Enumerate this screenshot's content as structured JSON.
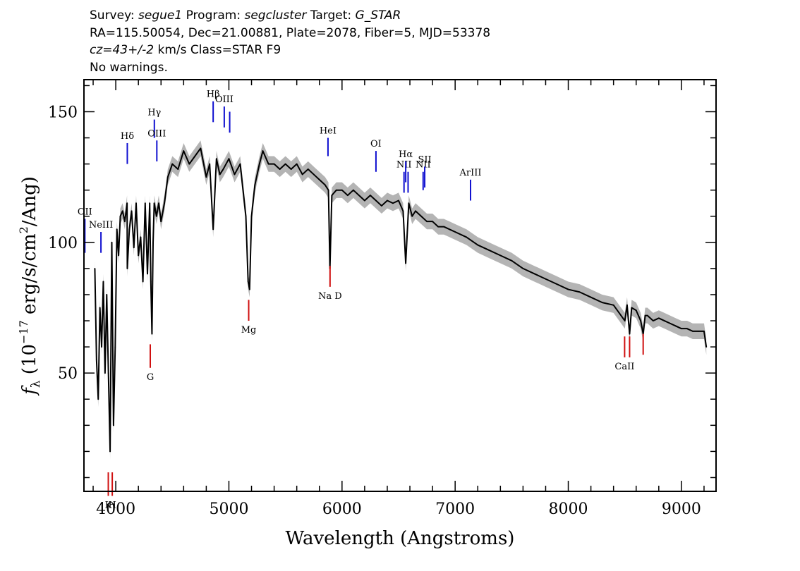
{
  "header": {
    "survey_label": "Survey:",
    "survey": "segue1",
    "program_label": "Program:",
    "program": "segcluster",
    "target_label": "Target:",
    "target": "G_STAR",
    "line2": "RA=115.50054, Dec=21.00881, Plate=2078, Fiber=5, MJD=53378",
    "cz": "cz=43+/-2",
    "cz_rest": " km/s Class=STAR F9",
    "warnings": "No warnings."
  },
  "chart_data": {
    "type": "line",
    "xlabel": "Wavelength (Angstroms)",
    "ylabel": "fλ (10^-17 erg/s/cm^2/Ang)",
    "xlim": [
      3725,
      9300
    ],
    "ylim": [
      5,
      162
    ],
    "x_ticks": [
      4000,
      5000,
      6000,
      7000,
      8000,
      9000
    ],
    "x_tick_labels": [
      "4000",
      "5000",
      "6000",
      "7000",
      "8000",
      "9000"
    ],
    "y_ticks": [
      50,
      100,
      150
    ],
    "y_tick_labels": [
      "50",
      "100",
      "150"
    ],
    "colors": {
      "spectrum": "#000000",
      "error": "#b4b4b4",
      "emission": "#1010d0",
      "absorption": "#d01010"
    },
    "series": [
      {
        "x": [
          3815,
          3830,
          3845,
          3860,
          3875,
          3890,
          3905,
          3920,
          3935,
          3950,
          3965,
          3980,
          3995,
          4010,
          4025,
          4040,
          4060,
          4080,
          4100,
          4102,
          4120,
          4140,
          4160,
          4180,
          4200,
          4220,
          4240,
          4260,
          4280,
          4300,
          4310,
          4320,
          4330,
          4340,
          4360,
          4380,
          4400,
          4430,
          4460,
          4500,
          4550,
          4600,
          4650,
          4700,
          4750,
          4800,
          4830,
          4861,
          4890,
          4920,
          4950,
          5000,
          5050,
          5100,
          5150,
          5170,
          5183,
          5200,
          5230,
          5270,
          5300,
          5350,
          5400,
          5450,
          5500,
          5550,
          5600,
          5650,
          5700,
          5750,
          5800,
          5850,
          5880,
          5893,
          5910,
          5950,
          6000,
          6050,
          6100,
          6150,
          6200,
          6250,
          6300,
          6350,
          6400,
          6450,
          6500,
          6540,
          6563,
          6590,
          6620,
          6650,
          6700,
          6750,
          6800,
          6850,
          6900,
          6950,
          7000,
          7100,
          7200,
          7300,
          7400,
          7500,
          7600,
          7700,
          7800,
          7900,
          8000,
          8100,
          8200,
          8300,
          8400,
          8450,
          8500,
          8520,
          8542,
          8560,
          8600,
          8640,
          8662,
          8680,
          8700,
          8750,
          8800,
          8850,
          8900,
          8950,
          9000,
          9050,
          9100,
          9150,
          9200,
          9220
        ],
        "y": [
          90,
          55,
          40,
          75,
          60,
          85,
          50,
          80,
          50,
          20,
          100,
          30,
          60,
          105,
          95,
          110,
          112,
          108,
          115,
          90,
          105,
          112,
          98,
          115,
          95,
          102,
          85,
          115,
          88,
          115,
          85,
          65,
          100,
          115,
          110,
          115,
          108,
          115,
          125,
          130,
          128,
          135,
          130,
          133,
          136,
          125,
          130,
          105,
          132,
          126,
          128,
          132,
          126,
          130,
          110,
          85,
          82,
          110,
          122,
          130,
          135,
          130,
          130,
          128,
          130,
          128,
          130,
          126,
          128,
          126,
          124,
          122,
          120,
          90,
          118,
          120,
          120,
          118,
          120,
          118,
          116,
          118,
          116,
          114,
          116,
          115,
          116,
          112,
          92,
          115,
          110,
          112,
          110,
          108,
          108,
          106,
          106,
          105,
          104,
          102,
          99,
          97,
          95,
          93,
          90,
          88,
          86,
          84,
          82,
          81,
          79,
          77,
          76,
          73,
          70,
          76,
          65,
          75,
          74,
          70,
          65,
          72,
          72,
          70,
          71,
          70,
          69,
          68,
          67,
          67,
          66,
          66,
          66,
          60
        ],
        "error_band": 3
      }
    ],
    "emission_lines": [
      {
        "label": "OII",
        "x": 3727,
        "y_top": 109,
        "y_bottom": 96
      },
      {
        "label": "NeIII",
        "x": 3869,
        "y_top": 104,
        "y_bottom": 96
      },
      {
        "label": "Hδ",
        "x": 4102,
        "y_top": 138,
        "y_bottom": 130
      },
      {
        "label": "Hγ",
        "x": 4341,
        "y_top": 147,
        "y_bottom": 140
      },
      {
        "label": "OIII",
        "x": 4363,
        "y_top": 139,
        "y_bottom": 131
      },
      {
        "label": "Hβ",
        "x": 4861,
        "y_top": 154,
        "y_bottom": 146
      },
      {
        "label": "OIII",
        "x": 4959,
        "y_top": 152,
        "y_bottom": 144
      },
      {
        "label": "",
        "x": 5007,
        "y_top": 150,
        "y_bottom": 142
      },
      {
        "label": "HeI",
        "x": 5876,
        "y_top": 140,
        "y_bottom": 133
      },
      {
        "label": "OI",
        "x": 6300,
        "y_top": 135,
        "y_bottom": 127
      },
      {
        "label": "NII",
        "x": 6548,
        "y_top": 127,
        "y_bottom": 119
      },
      {
        "label": "Hα",
        "x": 6563,
        "y_top": 131,
        "y_bottom": 123
      },
      {
        "label": "",
        "x": 6584,
        "y_top": 127,
        "y_bottom": 119
      },
      {
        "label": "NII",
        "x": 6717,
        "y_top": 127,
        "y_bottom": 120
      },
      {
        "label": "SII",
        "x": 6731,
        "y_top": 129,
        "y_bottom": 121
      },
      {
        "label": "ArIII",
        "x": 7136,
        "y_top": 124,
        "y_bottom": 116
      }
    ],
    "absorption_lines": [
      {
        "label": "K",
        "x": 3934,
        "y_top": 12,
        "y_bottom": 3
      },
      {
        "label": "H",
        "x": 3969,
        "y_top": 12,
        "y_bottom": 3
      },
      {
        "label": "G",
        "x": 4305,
        "y_top": 61,
        "y_bottom": 52
      },
      {
        "label": "Mg",
        "x": 5175,
        "y_top": 78,
        "y_bottom": 70
      },
      {
        "label": "Na D",
        "x": 5894,
        "y_top": 91,
        "y_bottom": 83
      },
      {
        "label": "CaII",
        "x": 8498,
        "y_top": 64,
        "y_bottom": 56
      },
      {
        "label": "",
        "x": 8542,
        "y_top": 64,
        "y_bottom": 56
      },
      {
        "label": "",
        "x": 8662,
        "y_top": 65,
        "y_bottom": 57
      }
    ]
  }
}
